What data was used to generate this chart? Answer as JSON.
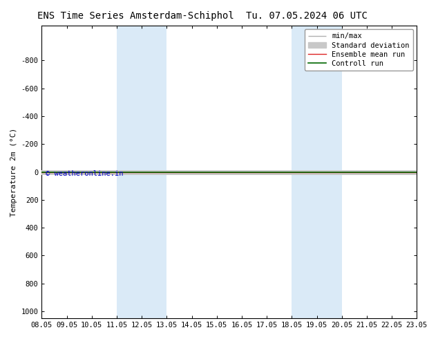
{
  "title_left": "ENS Time Series Amsterdam-Schiphol",
  "title_right": "Tu. 07.05.2024 06 UTC",
  "ylabel": "Temperature 2m (°C)",
  "ylim": [
    -1050,
    1050
  ],
  "yticks": [
    -800,
    -600,
    -400,
    -200,
    0,
    200,
    400,
    600,
    800,
    1000
  ],
  "xtick_labels": [
    "08.05",
    "09.05",
    "10.05",
    "11.05",
    "12.05",
    "13.05",
    "14.05",
    "15.05",
    "16.05",
    "17.05",
    "18.05",
    "19.05",
    "20.05",
    "21.05",
    "22.05",
    "23.05"
  ],
  "xtick_positions": [
    0,
    1,
    2,
    3,
    4,
    5,
    6,
    7,
    8,
    9,
    10,
    11,
    12,
    13,
    14,
    15
  ],
  "blue_bands": [
    [
      3,
      4
    ],
    [
      4,
      5
    ],
    [
      10,
      11
    ],
    [
      11,
      12
    ]
  ],
  "line_y": 0,
  "background_color": "#ffffff",
  "plot_bg_color": "#ffffff",
  "band_color": "#daeaf7",
  "legend_items": [
    {
      "label": "min/max",
      "color": "#b0b0b0",
      "lw": 1.0,
      "type": "line_cap"
    },
    {
      "label": "Standard deviation",
      "color": "#c8c8c8",
      "lw": 5,
      "type": "patch"
    },
    {
      "label": "Ensemble mean run",
      "color": "#dd2222",
      "lw": 1.0,
      "type": "line"
    },
    {
      "label": "Controll run",
      "color": "#006600",
      "lw": 1.2,
      "type": "line"
    }
  ],
  "copyright_text": "© weatheronline.in",
  "copyright_color": "#0000cc",
  "title_fontsize": 10,
  "axis_label_fontsize": 8,
  "tick_fontsize": 7.5,
  "legend_fontsize": 7.5
}
